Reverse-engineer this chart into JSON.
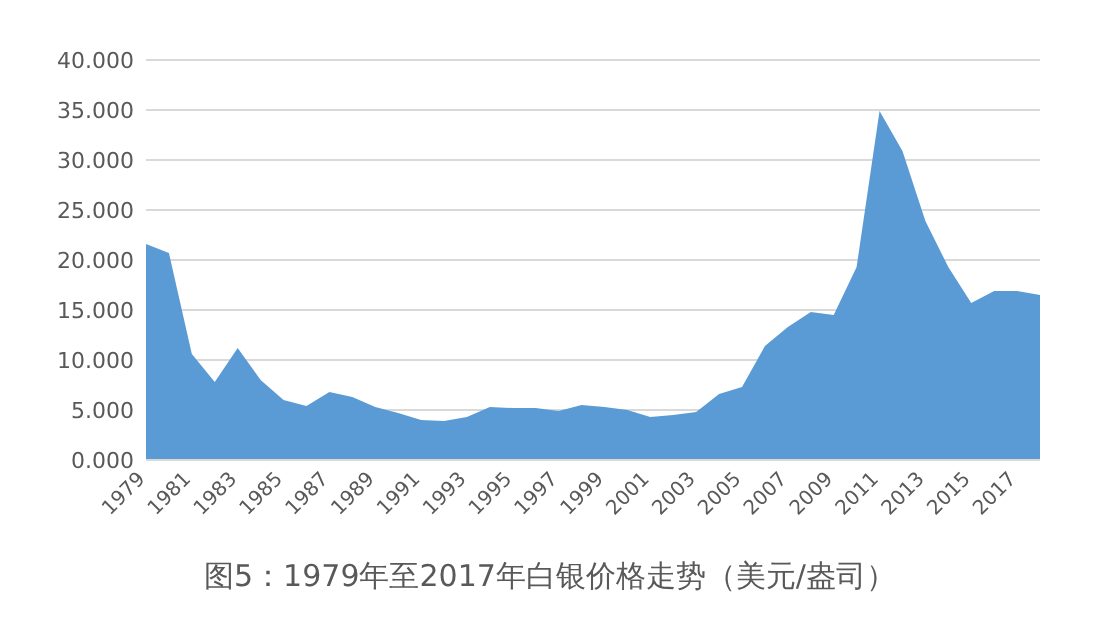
{
  "chart_data": {
    "type": "area",
    "categories": [
      "1979",
      null,
      "1981",
      null,
      "1983",
      null,
      "1985",
      null,
      "1987",
      null,
      "1989",
      null,
      "1991",
      null,
      "1993",
      null,
      "1995",
      null,
      "1997",
      null,
      "1999",
      null,
      "2001",
      null,
      "2003",
      null,
      "2005",
      null,
      "2007",
      null,
      "2009",
      null,
      "2011",
      null,
      "2013",
      null,
      "2015",
      null,
      "2017",
      null
    ],
    "series": [
      {
        "color": "#5b9bd5",
        "values": [
          21.6,
          20.7,
          10.6,
          7.8,
          11.2,
          8.0,
          6.0,
          5.4,
          6.8,
          6.3,
          5.3,
          4.7,
          4.0,
          3.9,
          4.3,
          5.3,
          5.2,
          5.2,
          4.9,
          5.5,
          5.3,
          5.0,
          4.3,
          4.5,
          4.8,
          6.6,
          7.3,
          11.4,
          13.3,
          14.8,
          14.5,
          19.3,
          34.9,
          30.9,
          23.9,
          19.3,
          15.7,
          16.9,
          16.9,
          16.5
        ]
      }
    ],
    "ylim": [
      0,
      40
    ],
    "yticks": [
      {
        "value": 0,
        "label": "0.000"
      },
      {
        "value": 5,
        "label": "5.000"
      },
      {
        "value": 10,
        "label": "10.000"
      },
      {
        "value": 15,
        "label": "15.000"
      },
      {
        "value": 20,
        "label": "20.000"
      },
      {
        "value": 25,
        "label": "25.000"
      },
      {
        "value": 30,
        "label": "30.000"
      },
      {
        "value": 35,
        "label": "35.000"
      },
      {
        "value": 40,
        "label": "40.000"
      }
    ],
    "grid": "y",
    "annotations": [
      "图5：1979年至2017年白银价格走势（美元/盎司）"
    ]
  }
}
